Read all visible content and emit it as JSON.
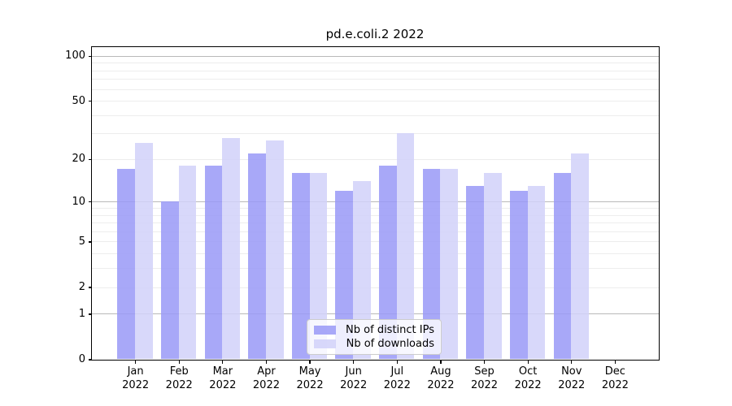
{
  "chart_data": {
    "type": "bar",
    "title": "pd.e.coli.2 2022",
    "categories": [
      {
        "month": "Jan",
        "year": "2022"
      },
      {
        "month": "Feb",
        "year": "2022"
      },
      {
        "month": "Mar",
        "year": "2022"
      },
      {
        "month": "Apr",
        "year": "2022"
      },
      {
        "month": "May",
        "year": "2022"
      },
      {
        "month": "Jun",
        "year": "2022"
      },
      {
        "month": "Jul",
        "year": "2022"
      },
      {
        "month": "Aug",
        "year": "2022"
      },
      {
        "month": "Sep",
        "year": "2022"
      },
      {
        "month": "Oct",
        "year": "2022"
      },
      {
        "month": "Nov",
        "year": "2022"
      },
      {
        "month": "Dec",
        "year": "2022"
      }
    ],
    "series": [
      {
        "name": "Nb of distinct IPs",
        "color": "rgba(153,153,247,0.85)",
        "values": [
          17,
          10,
          18,
          22,
          16,
          12,
          18,
          17,
          13,
          12,
          16,
          0
        ]
      },
      {
        "name": "Nb of downloads",
        "color": "rgba(209,209,249,0.85)",
        "values": [
          26,
          18,
          28,
          27,
          16,
          14,
          30,
          17,
          16,
          13,
          22,
          0
        ]
      }
    ],
    "yticks": [
      100,
      50,
      20,
      10,
      5,
      2,
      1,
      0
    ],
    "scale": "log1p",
    "ylim": [
      0,
      115
    ],
    "xlabel": "",
    "ylabel": "",
    "grid": "on",
    "legend_position": "lower-center-inside",
    "colors": {
      "major_grid": "#b9b9b9",
      "minor_grid": "#ededed",
      "axis": "#000000",
      "background": "#ffffff"
    }
  }
}
